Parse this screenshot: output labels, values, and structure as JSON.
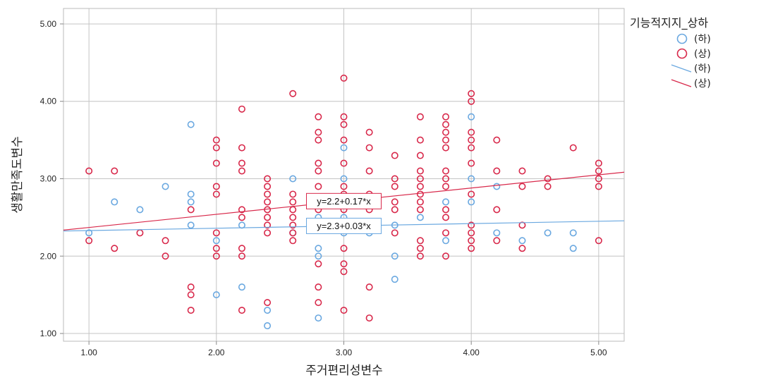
{
  "chart_data": {
    "type": "scatter",
    "xlabel": "주거편리성변수",
    "ylabel": "생활만족도변수",
    "xlim": [
      0.8,
      5.2
    ],
    "ylim": [
      0.9,
      5.2
    ],
    "x_ticks": [
      "1.00",
      "2.00",
      "3.00",
      "4.00",
      "5.00"
    ],
    "y_ticks": [
      "1.00",
      "2.00",
      "3.00",
      "4.00",
      "5.00"
    ],
    "x_tick_values": [
      1,
      2,
      3,
      4,
      5
    ],
    "y_tick_values": [
      1,
      2,
      3,
      4,
      5
    ],
    "grid": true,
    "legend_title": "기능적지지_상하",
    "legend_position": "top-right",
    "series": [
      {
        "name": "(하)",
        "color": "#6aa8e0",
        "points": [
          [
            1.0,
            2.3
          ],
          [
            1.2,
            2.7
          ],
          [
            1.4,
            2.6
          ],
          [
            1.6,
            2.9
          ],
          [
            1.8,
            3.7
          ],
          [
            1.8,
            2.8
          ],
          [
            1.8,
            2.7
          ],
          [
            1.8,
            2.4
          ],
          [
            2.0,
            2.2
          ],
          [
            2.0,
            1.5
          ],
          [
            2.2,
            2.4
          ],
          [
            2.2,
            1.6
          ],
          [
            2.4,
            1.3
          ],
          [
            2.4,
            1.1
          ],
          [
            2.6,
            3.0
          ],
          [
            2.6,
            2.3
          ],
          [
            2.8,
            2.1
          ],
          [
            2.8,
            2.0
          ],
          [
            2.8,
            1.2
          ],
          [
            2.8,
            2.5
          ],
          [
            3.0,
            3.4
          ],
          [
            3.0,
            3.0
          ],
          [
            3.0,
            2.5
          ],
          [
            3.0,
            2.3
          ],
          [
            3.2,
            2.3
          ],
          [
            3.4,
            2.4
          ],
          [
            3.4,
            2.0
          ],
          [
            3.4,
            1.7
          ],
          [
            3.6,
            2.5
          ],
          [
            3.8,
            2.2
          ],
          [
            3.8,
            2.7
          ],
          [
            4.0,
            3.8
          ],
          [
            4.0,
            3.0
          ],
          [
            4.0,
            2.7
          ],
          [
            4.2,
            2.3
          ],
          [
            4.2,
            2.9
          ],
          [
            4.4,
            2.2
          ],
          [
            4.6,
            2.3
          ],
          [
            4.8,
            2.3
          ],
          [
            4.8,
            2.1
          ]
        ]
      },
      {
        "name": "(상)",
        "color": "#d8284a",
        "points": [
          [
            1.0,
            3.1
          ],
          [
            1.0,
            2.2
          ],
          [
            1.2,
            3.1
          ],
          [
            1.2,
            2.1
          ],
          [
            1.4,
            2.3
          ],
          [
            1.6,
            2.2
          ],
          [
            1.6,
            2.0
          ],
          [
            1.8,
            2.6
          ],
          [
            1.8,
            1.6
          ],
          [
            1.8,
            1.5
          ],
          [
            1.8,
            1.3
          ],
          [
            2.0,
            3.5
          ],
          [
            2.0,
            3.4
          ],
          [
            2.0,
            3.2
          ],
          [
            2.0,
            2.9
          ],
          [
            2.0,
            2.8
          ],
          [
            2.0,
            2.3
          ],
          [
            2.0,
            2.1
          ],
          [
            2.0,
            2.0
          ],
          [
            2.2,
            3.9
          ],
          [
            2.2,
            3.4
          ],
          [
            2.2,
            3.2
          ],
          [
            2.2,
            3.1
          ],
          [
            2.2,
            2.6
          ],
          [
            2.2,
            2.5
          ],
          [
            2.2,
            2.1
          ],
          [
            2.2,
            2.0
          ],
          [
            2.2,
            1.3
          ],
          [
            2.4,
            3.0
          ],
          [
            2.4,
            2.9
          ],
          [
            2.4,
            2.8
          ],
          [
            2.4,
            2.7
          ],
          [
            2.4,
            2.6
          ],
          [
            2.4,
            2.5
          ],
          [
            2.4,
            2.4
          ],
          [
            2.4,
            2.3
          ],
          [
            2.4,
            1.4
          ],
          [
            2.6,
            4.1
          ],
          [
            2.6,
            2.8
          ],
          [
            2.6,
            2.7
          ],
          [
            2.6,
            2.6
          ],
          [
            2.6,
            2.5
          ],
          [
            2.6,
            2.4
          ],
          [
            2.6,
            2.3
          ],
          [
            2.6,
            2.2
          ],
          [
            2.8,
            3.8
          ],
          [
            2.8,
            3.6
          ],
          [
            2.8,
            3.5
          ],
          [
            2.8,
            3.2
          ],
          [
            2.8,
            3.1
          ],
          [
            2.8,
            2.9
          ],
          [
            2.8,
            2.6
          ],
          [
            2.8,
            1.9
          ],
          [
            2.8,
            1.6
          ],
          [
            2.8,
            1.4
          ],
          [
            3.0,
            4.3
          ],
          [
            3.0,
            3.8
          ],
          [
            3.0,
            3.7
          ],
          [
            3.0,
            3.5
          ],
          [
            3.0,
            3.2
          ],
          [
            3.0,
            2.9
          ],
          [
            3.0,
            2.8
          ],
          [
            3.0,
            2.6
          ],
          [
            3.0,
            2.1
          ],
          [
            3.0,
            1.9
          ],
          [
            3.0,
            1.8
          ],
          [
            3.0,
            1.3
          ],
          [
            3.2,
            3.6
          ],
          [
            3.2,
            3.4
          ],
          [
            3.2,
            3.1
          ],
          [
            3.2,
            2.8
          ],
          [
            3.2,
            2.6
          ],
          [
            3.2,
            1.6
          ],
          [
            3.2,
            1.2
          ],
          [
            3.4,
            3.3
          ],
          [
            3.4,
            3.0
          ],
          [
            3.4,
            2.9
          ],
          [
            3.4,
            2.7
          ],
          [
            3.4,
            2.6
          ],
          [
            3.4,
            2.3
          ],
          [
            3.6,
            3.8
          ],
          [
            3.6,
            3.5
          ],
          [
            3.6,
            3.3
          ],
          [
            3.6,
            3.1
          ],
          [
            3.6,
            3.0
          ],
          [
            3.6,
            2.9
          ],
          [
            3.6,
            2.8
          ],
          [
            3.6,
            2.7
          ],
          [
            3.6,
            2.6
          ],
          [
            3.6,
            2.2
          ],
          [
            3.6,
            2.1
          ],
          [
            3.6,
            2.0
          ],
          [
            3.8,
            3.8
          ],
          [
            3.8,
            3.7
          ],
          [
            3.8,
            3.6
          ],
          [
            3.8,
            3.5
          ],
          [
            3.8,
            3.4
          ],
          [
            3.8,
            3.1
          ],
          [
            3.8,
            3.0
          ],
          [
            3.8,
            2.9
          ],
          [
            3.8,
            2.6
          ],
          [
            3.8,
            2.5
          ],
          [
            3.8,
            2.3
          ],
          [
            3.8,
            2.0
          ],
          [
            4.0,
            4.1
          ],
          [
            4.0,
            4.0
          ],
          [
            4.0,
            3.6
          ],
          [
            4.0,
            3.5
          ],
          [
            4.0,
            3.4
          ],
          [
            4.0,
            3.2
          ],
          [
            4.0,
            2.8
          ],
          [
            4.0,
            2.4
          ],
          [
            4.0,
            2.3
          ],
          [
            4.0,
            2.2
          ],
          [
            4.0,
            2.1
          ],
          [
            4.2,
            3.5
          ],
          [
            4.2,
            3.1
          ],
          [
            4.2,
            2.6
          ],
          [
            4.2,
            2.2
          ],
          [
            4.4,
            3.1
          ],
          [
            4.4,
            2.9
          ],
          [
            4.4,
            2.4
          ],
          [
            4.4,
            2.1
          ],
          [
            4.6,
            3.0
          ],
          [
            4.6,
            2.9
          ],
          [
            4.8,
            3.4
          ],
          [
            5.0,
            3.2
          ],
          [
            5.0,
            3.1
          ],
          [
            5.0,
            3.0
          ],
          [
            5.0,
            2.9
          ],
          [
            5.0,
            2.2
          ]
        ]
      }
    ],
    "fit_lines": [
      {
        "name": "(하)",
        "color": "#6aa8e0",
        "intercept": 2.3,
        "slope": 0.03,
        "label": "y=2.3+0.03*x",
        "label_x": 3.0
      },
      {
        "name": "(상)",
        "color": "#d8284a",
        "intercept": 2.2,
        "slope": 0.17,
        "label": "y=2.2+0.17*x",
        "label_x": 3.0
      }
    ]
  }
}
